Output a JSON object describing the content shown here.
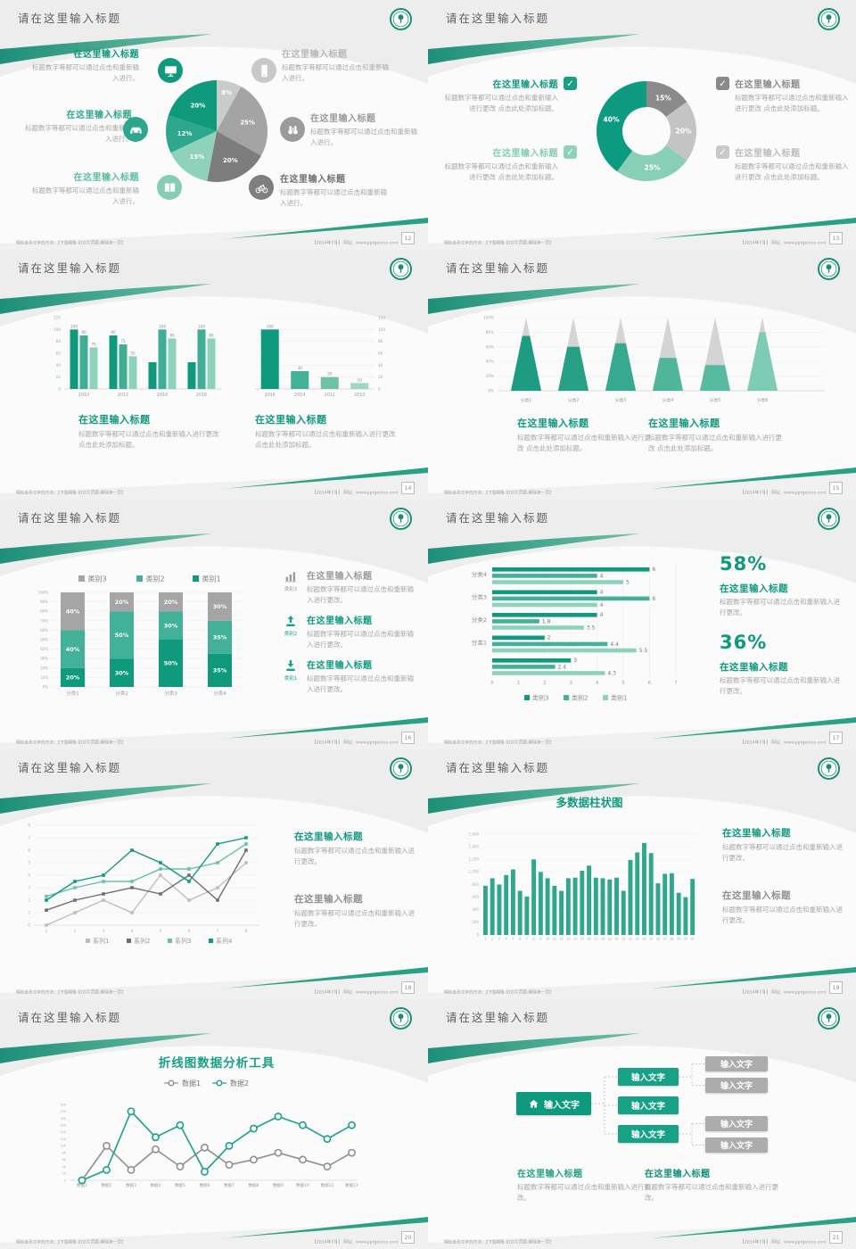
{
  "common": {
    "slide_title": "请在这里输入标题",
    "heading": "在这里输入标题",
    "footer_left": "模板批改文字的方法：【下载模板-幻灯片页面-删除第一页】",
    "footer_right": "【2014年7月】 网址：www.pptgenius.com"
  },
  "colors": {
    "accent_dark": "#0f9a7e",
    "accent": "#2fa78c",
    "accent_light": "#85cdb6",
    "gray_dark": "#7c7c7c",
    "gray": "#9b9b9b",
    "gray_light": "#c6c6c6",
    "title_text": "#5f5f5f",
    "body_text": "#a6a6a6",
    "band_bg": "#ededed"
  },
  "slides": [
    {
      "page_number": "12",
      "layout": "pie-callouts",
      "body": "标题数字等都可以通过点击和重新输入进行。",
      "chart": {
        "type": "pie",
        "values": [
          8,
          25,
          20,
          15,
          12,
          20
        ],
        "labels": [
          "8%",
          "25%",
          "20%",
          "15%",
          "12%",
          "20%"
        ],
        "colors": [
          "#cbcbcb",
          "#a4a4a4",
          "#7d7d7d",
          "#8fd2bc",
          "#2fa78c",
          "#0f9a7e"
        ]
      },
      "callouts": [
        {
          "side": "left",
          "icon": "monitor-icon",
          "color": "#0f9a7e",
          "heading_color": "#0f9a7e"
        },
        {
          "side": "left",
          "icon": "car-icon",
          "color": "#2fa78c",
          "heading_color": "#2fa78c"
        },
        {
          "side": "left",
          "icon": "book-icon",
          "color": "#85cdb6",
          "heading_color": "#5bbf9f"
        },
        {
          "side": "right",
          "icon": "smartphone-icon",
          "color": "#c9c9c9",
          "heading_color": "#b9b9b9"
        },
        {
          "side": "right",
          "icon": "binoculars-icon",
          "color": "#9b9b9b",
          "heading_color": "#9b9b9b"
        },
        {
          "side": "right",
          "icon": "bicycle-icon",
          "color": "#7f7f7f",
          "heading_color": "#6f6f6f"
        }
      ]
    },
    {
      "page_number": "13",
      "layout": "donut-callouts",
      "body": "标题数字等都可以通过点击和重新输入进行更改 点击此处添加标题。",
      "chart": {
        "type": "donut",
        "values": [
          15,
          20,
          25,
          40
        ],
        "labels": [
          "15%",
          "20%",
          "25%",
          "40%"
        ],
        "colors": [
          "#8a8a8a",
          "#c4c4c4",
          "#88cfb8",
          "#0c9a80"
        ]
      },
      "callouts": [
        {
          "side": "left",
          "color": "#17a084",
          "heading_color": "#0f9a7e"
        },
        {
          "side": "left",
          "color": "#8fd2bc",
          "heading_color": "#85cdb6"
        },
        {
          "side": "right",
          "color": "#8a8a8a",
          "heading_color": "#8a8a8a"
        },
        {
          "side": "right",
          "color": "#c9c9c9",
          "heading_color": "#bdbdbd"
        }
      ]
    },
    {
      "page_number": "14",
      "layout": "two-column-charts",
      "body": "标题数字等都可以通过点击和重新输入进行更改 点击此处添加标题。",
      "chart_left": {
        "type": "grouped-column",
        "categories": [
          "2010",
          "2012",
          "2014",
          "2016"
        ],
        "ymax": 120,
        "y_ticks": [
          "0",
          "20",
          "40",
          "60",
          "80",
          "100",
          "120"
        ],
        "series": [
          {
            "color": "#0f9a7e",
            "values": [
              100,
              90,
              45,
              45
            ],
            "bar_labels": [
              "100",
              "90",
              "",
              ""
            ]
          },
          {
            "color": "#3fae94",
            "values": [
              90,
              75,
              100,
              100
            ],
            "bar_labels": [
              "90",
              "75",
              "100",
              "100"
            ]
          },
          {
            "color": "#8fd2bc",
            "values": [
              70,
              55,
              85,
              85
            ],
            "bar_labels": [
              "70",
              "55",
              "85",
              "85"
            ]
          }
        ]
      },
      "chart_right": {
        "type": "column",
        "categories": [
          "2016",
          "2014",
          "2012",
          "2010"
        ],
        "values": [
          100,
          30,
          20,
          10
        ],
        "bar_labels": [
          "100",
          "30",
          "20",
          "10"
        ],
        "colors": [
          "#0f9a7e",
          "#43b098",
          "#6fc2a8",
          "#9ad8c3"
        ],
        "ymax": 120,
        "y_ticks": [
          "0",
          "20",
          "40",
          "60",
          "80",
          "100",
          "120"
        ]
      }
    },
    {
      "page_number": "15",
      "layout": "pyramids",
      "body": "标题数字等都可以通过点击和重新输入进行更改 点击此处添加标题。",
      "chart": {
        "type": "pyramid",
        "categories": [
          "分类1",
          "分类2",
          "分类3",
          "分类4",
          "分类5",
          "分类6"
        ],
        "values_pct": [
          75,
          60,
          65,
          45,
          35,
          80
        ],
        "colors": [
          "#1d9c81",
          "#27a085",
          "#35aa8e",
          "#4fb59b",
          "#58bba0",
          "#7fccb5"
        ],
        "y_ticks": [
          "0%",
          "20%",
          "40%",
          "60%",
          "80%",
          "100%"
        ]
      }
    },
    {
      "page_number": "16",
      "layout": "stacked-column",
      "body": "标题数字等都可以通过点击和重新输入进行更改。",
      "chart": {
        "type": "stacked-column",
        "categories": [
          "分类1",
          "分类2",
          "分类3",
          "分类4"
        ],
        "series": [
          {
            "name": "类别1",
            "color": "#0f9a7e",
            "values": [
              20,
              30,
              50,
              35
            ],
            "labels": [
              "20%",
              "30%",
              "50%",
              "35%"
            ]
          },
          {
            "name": "类别2",
            "color": "#43b098",
            "values": [
              40,
              50,
              30,
              35
            ],
            "labels": [
              "40%",
              "50%",
              "30%",
              "35%"
            ]
          },
          {
            "name": "类别3",
            "color": "#a5a5a5",
            "values": [
              40,
              20,
              20,
              30
            ],
            "labels": [
              "40%",
              "20%",
              "20%",
              "30%"
            ]
          }
        ],
        "legend": [
          {
            "label": "类别3",
            "color": "#a5a5a5"
          },
          {
            "label": "类别2",
            "color": "#43b098"
          },
          {
            "label": "类别1",
            "color": "#0f9a7e"
          }
        ],
        "y_ticks": [
          "0%",
          "10%",
          "20%",
          "30%",
          "40%",
          "50%",
          "60%",
          "70%",
          "80%",
          "90%",
          "100%"
        ]
      },
      "callouts": [
        {
          "icon": "bar-chart-icon",
          "icon_color": "#9b9b9b",
          "icon_label": "类别3",
          "heading_color": "#9b9b9b"
        },
        {
          "icon": "upload-icon",
          "icon_color": "#17a287",
          "icon_label": "类别2",
          "heading_color": "#0f9a7e"
        },
        {
          "icon": "download-icon",
          "icon_color": "#17a287",
          "icon_label": "类别1",
          "heading_color": "#0f9a7e"
        }
      ]
    },
    {
      "page_number": "17",
      "layout": "hbar-stats",
      "body": "标题数字等都可以通过点击和重新输入进行更改。",
      "chart": {
        "type": "hbar",
        "xmax": 7,
        "x_ticks": [
          "0",
          "1",
          "2",
          "3",
          "4",
          "5",
          "6",
          "7"
        ],
        "series_colors": [
          "#0f9a7e",
          "#43b098",
          "#8fd2bc"
        ],
        "groups": [
          {
            "label": "分类4",
            "values": [
              6,
              4,
              5
            ]
          },
          {
            "label": "分类3",
            "values": [
              4,
              6,
              4
            ]
          },
          {
            "label": "分类2",
            "values": [
              4,
              1.8,
              3.5
            ]
          },
          {
            "label": "分类1",
            "values": [
              2,
              4.4,
              5.5
            ]
          },
          {
            "label": "",
            "values": [
              3,
              2.4,
              4.3
            ]
          }
        ],
        "legend": [
          {
            "label": "类别3",
            "color": "#0f9a7e"
          },
          {
            "label": "类别2",
            "color": "#43b098"
          },
          {
            "label": "类别1",
            "color": "#8fd2bc"
          }
        ]
      },
      "stats": [
        {
          "value": "58%"
        },
        {
          "value": "36%"
        }
      ]
    },
    {
      "page_number": "18",
      "layout": "line-chart",
      "body": "标题数字等都可以通过点击和重新输入进行更改。",
      "chart": {
        "type": "line",
        "ymax": 8,
        "x_ticks": [
          "1",
          "2",
          "3",
          "4",
          "5",
          "6",
          "7",
          "8"
        ],
        "y_ticks": [
          "0",
          "1",
          "2",
          "3",
          "4",
          "5",
          "6",
          "7",
          "8"
        ],
        "series": [
          {
            "name": "系列1",
            "color": "#bdbdbd",
            "values": [
              0,
              1,
              2,
              1,
              4,
              2,
              3,
              5
            ]
          },
          {
            "name": "系列2",
            "color": "#6e6e6e",
            "values": [
              1.2,
              2,
              2.5,
              3,
              2.5,
              4,
              2,
              6
            ]
          },
          {
            "name": "系列3",
            "color": "#66c3a8",
            "values": [
              2.3,
              3,
              3.5,
              3.5,
              4.5,
              4.5,
              5,
              6.5
            ]
          },
          {
            "name": "系列4",
            "color": "#0f9a7e",
            "values": [
              2,
              3.5,
              4,
              6,
              5,
              3.5,
              6.5,
              7
            ]
          }
        ]
      },
      "blocks": [
        {
          "heading_color": "#0f9a7e"
        },
        {
          "heading_color": "#8f8f8f"
        }
      ]
    },
    {
      "page_number": "19",
      "layout": "multi-bar",
      "body": "标题数字等都可以通过点击和重新输入进行更改。",
      "chart": {
        "type": "column-many",
        "title": "多数据柱状图",
        "color": "#2fa78c",
        "ymax": 1600,
        "y_ticks": [
          "0",
          "200",
          "400",
          "600",
          "800",
          "1,000",
          "1,200",
          "1,400",
          "1,600"
        ],
        "x_labels": [
          "1",
          "2",
          "3",
          "4",
          "5",
          "6",
          "7",
          "8",
          "9",
          "10",
          "11",
          "12",
          "13",
          "14",
          "15",
          "16",
          "17",
          "18",
          "19",
          "20",
          "21",
          "22",
          "23",
          "24",
          "25",
          "26",
          "27",
          "28",
          "29",
          "30",
          "31"
        ],
        "values": [
          780,
          900,
          800,
          950,
          1040,
          700,
          610,
          1200,
          1000,
          900,
          780,
          700,
          900,
          910,
          1020,
          1100,
          910,
          900,
          880,
          910,
          700,
          1190,
          1310,
          1460,
          1300,
          820,
          970,
          980,
          670,
          600,
          890
        ]
      },
      "blocks": [
        {
          "heading_color": "#0f9a7e"
        },
        {
          "heading_color": "#8f8f8f"
        }
      ]
    },
    {
      "page_number": "20",
      "layout": "line-analysis",
      "chart": {
        "type": "line-markers",
        "title": "折线图数据分析工具",
        "ymax": 220,
        "y_ticks": [
          "0",
          "20",
          "40",
          "60",
          "80",
          "100",
          "120",
          "140",
          "160",
          "180",
          "200",
          "220"
        ],
        "x_labels": [
          "数据1",
          "数据2",
          "数据3",
          "数据4",
          "数据5",
          "数据6",
          "数据7",
          "数据8",
          "数据9",
          "数据10",
          "数据11",
          "数据12"
        ],
        "series": [
          {
            "name": "数据1",
            "color": "#8f8f8f",
            "values": [
              0,
              100,
              30,
              90,
              40,
              95,
              45,
              60,
              80,
              60,
              40,
              80
            ]
          },
          {
            "name": "数据2",
            "color": "#17a287",
            "values": [
              0,
              30,
              200,
              125,
              160,
              25,
              100,
              150,
              185,
              160,
              120,
              160
            ]
          }
        ]
      }
    },
    {
      "page_number": "21",
      "layout": "tree",
      "body": "标题数字等都可以通过点击和重新输入进行更改。",
      "tree": {
        "root": {
          "label": "输入文字",
          "icon": "home-icon"
        },
        "mid": [
          "输入文字",
          "输入文字",
          "输入文字"
        ],
        "leaves": [
          "输入文字",
          "输入文字",
          "输入文字",
          "输入文字"
        ]
      },
      "blocks": [
        {
          "heading_color": "#25a088"
        },
        {
          "heading_color": "#0f8f77"
        }
      ]
    }
  ]
}
